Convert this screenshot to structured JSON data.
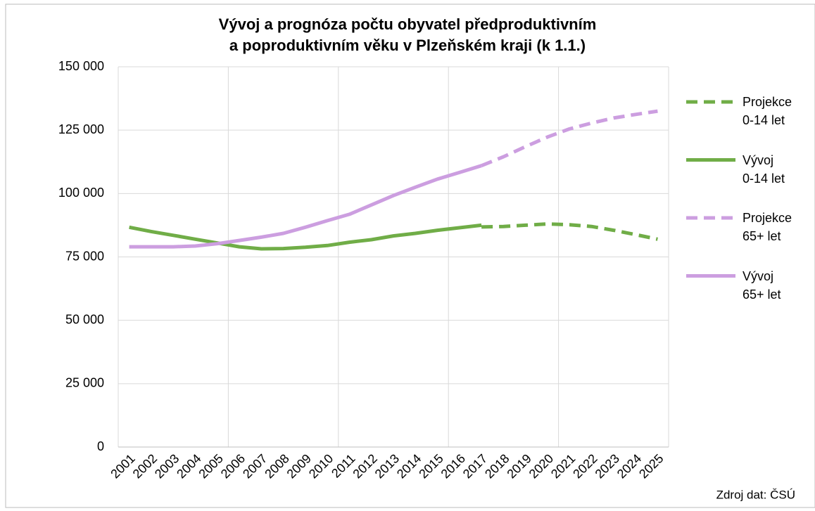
{
  "chart_data": {
    "type": "line",
    "title": "Vývoj a prognóza počtu obyvatel předproduktivním\na poproduktivním věku v Plzeňském kraji (k 1.1.)",
    "source": "Zdroj dat: ČSÚ",
    "categories": [
      "2001",
      "2002",
      "2003",
      "2004",
      "2005",
      "2006",
      "2007",
      "2008",
      "2009",
      "2010",
      "2011",
      "2012",
      "2013",
      "2014",
      "2015",
      "2016",
      "2017",
      "2018",
      "2019",
      "2020",
      "2021",
      "2022",
      "2023",
      "2024",
      "2025"
    ],
    "ylim": [
      0,
      150000
    ],
    "yticks": [
      0,
      {
        "value": 25000,
        "label": "25 000"
      },
      {
        "value": 50000,
        "label": "50 000"
      },
      {
        "value": 75000,
        "label": "75 000"
      },
      {
        "value": 100000,
        "label": "100 000"
      },
      {
        "value": 125000,
        "label": "125 000"
      },
      {
        "value": 150000,
        "label": "150 000"
      }
    ],
    "grid": true,
    "legend": "right",
    "series": [
      {
        "name": "Projekce\n0-14 let",
        "color": "#70ad47",
        "dashed": true,
        "values": [
          null,
          null,
          null,
          null,
          null,
          null,
          null,
          null,
          null,
          null,
          null,
          null,
          null,
          null,
          null,
          null,
          86800,
          87000,
          87500,
          88000,
          87700,
          87000,
          85500,
          83800,
          82000
        ]
      },
      {
        "name": "Vývoj\n0-14 let",
        "color": "#70ad47",
        "dashed": false,
        "values": [
          86700,
          85000,
          83500,
          82000,
          80500,
          79000,
          78200,
          78300,
          78800,
          79500,
          80800,
          81800,
          83300,
          84300,
          85500,
          86500,
          87500,
          null,
          null,
          null,
          null,
          null,
          null,
          null,
          null
        ]
      },
      {
        "name": "Projekce\n65+ let",
        "color": "#cc9ee0",
        "dashed": true,
        "values": [
          null,
          null,
          null,
          null,
          null,
          null,
          null,
          null,
          null,
          null,
          null,
          null,
          null,
          null,
          null,
          null,
          111000,
          114500,
          118500,
          122300,
          125500,
          127800,
          129800,
          131200,
          132500
        ]
      },
      {
        "name": "Vývoj\n65+ let",
        "color": "#cc9ee0",
        "dashed": false,
        "values": [
          79000,
          79000,
          79000,
          79300,
          80200,
          81500,
          82800,
          84300,
          86700,
          89300,
          91800,
          95500,
          99200,
          102500,
          105700,
          108300,
          111000,
          null,
          null,
          null,
          null,
          null,
          null,
          null,
          null
        ]
      }
    ]
  }
}
